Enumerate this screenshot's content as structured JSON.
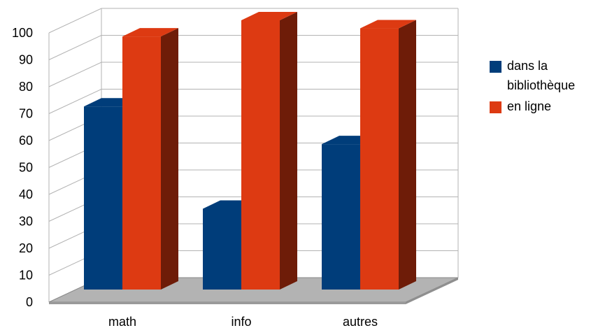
{
  "chart_data": {
    "type": "bar",
    "style": "3d-clustered",
    "categories": [
      "math",
      "info",
      "autres"
    ],
    "series": [
      {
        "name": "dans la bibliothèque",
        "values": [
          68,
          30,
          54
        ],
        "color": "#003D7A",
        "side_color": "#002A55"
      },
      {
        "name": "en ligne",
        "values": [
          94,
          100,
          97
        ],
        "color": "#DD3A12",
        "side_color": "#6E1C08"
      }
    ],
    "title": "",
    "xlabel": "",
    "ylabel": "",
    "ylim": [
      0,
      100
    ],
    "yticks": [
      "0",
      "10",
      "20",
      "30",
      "40",
      "50",
      "60",
      "70",
      "80",
      "90",
      "100"
    ],
    "grid": true,
    "legend_position": "right",
    "colors": {
      "grid": "#b3b3b3",
      "floor": "#b3b3b3"
    }
  }
}
